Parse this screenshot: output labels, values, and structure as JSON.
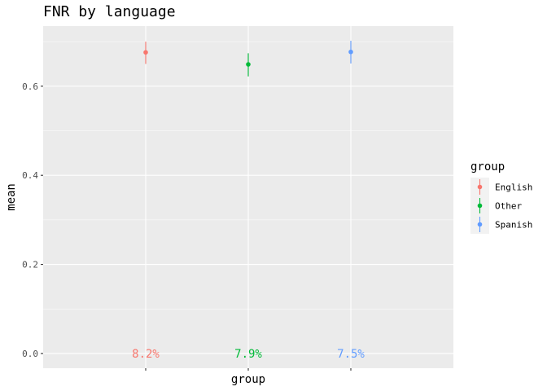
{
  "chart_data": {
    "type": "scatter",
    "title": "FNR by language",
    "xlabel": "group",
    "ylabel": "mean",
    "categories": [
      "English",
      "Other",
      "Spanish"
    ],
    "series": [
      {
        "name": "English",
        "color": "#F8766D",
        "mean": 0.676,
        "lower": 0.65,
        "upper": 0.7,
        "label": "8.2%"
      },
      {
        "name": "Other",
        "color": "#00BA38",
        "mean": 0.649,
        "lower": 0.622,
        "upper": 0.674,
        "label": "7.9%"
      },
      {
        "name": "Spanish",
        "color": "#619CFF",
        "mean": 0.677,
        "lower": 0.651,
        "upper": 0.702,
        "label": "7.5%"
      }
    ],
    "label_y": 0.0,
    "y_ticks": [
      0.0,
      0.2,
      0.4,
      0.6
    ],
    "y_tick_labels": [
      "0.0",
      "0.2",
      "0.4",
      "0.6"
    ],
    "ylim": [
      -0.033,
      0.735
    ],
    "x_tick_labels_visible": false,
    "legend": {
      "title": "group",
      "position": "right"
    },
    "grid": true,
    "panel_background": "#EBEBEB"
  }
}
